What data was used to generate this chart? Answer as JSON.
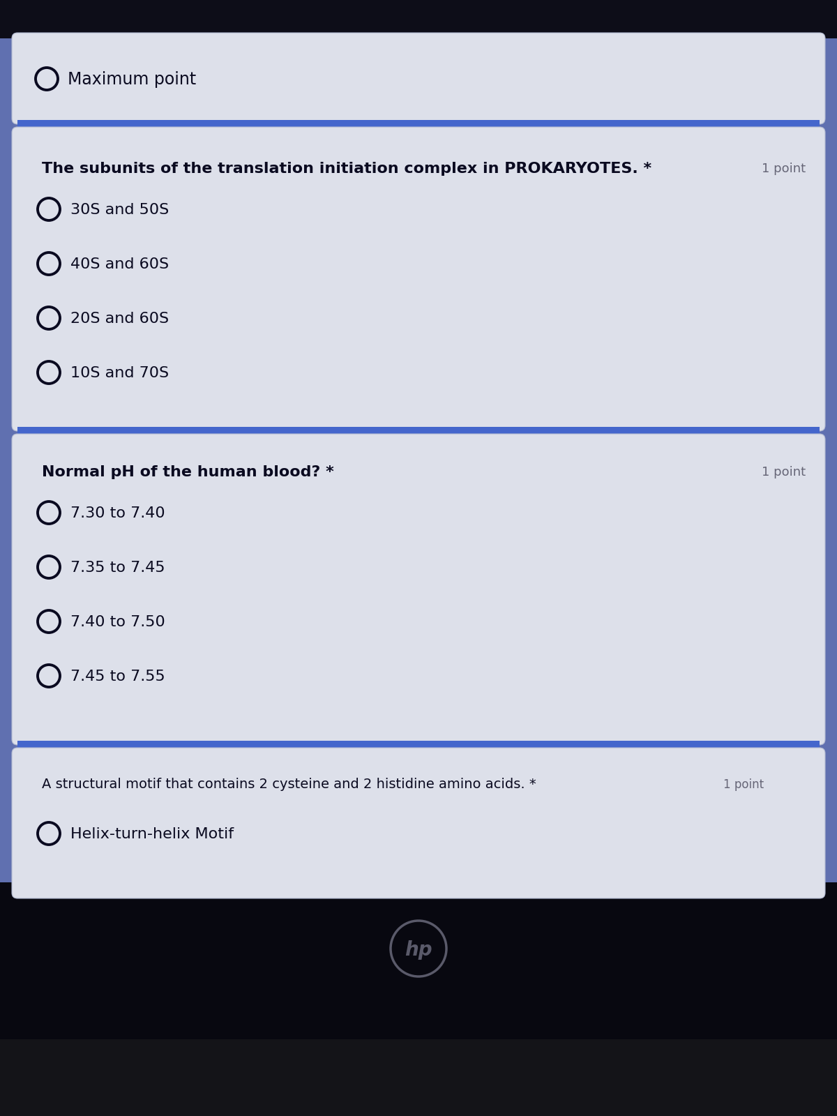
{
  "bg_outer": "#1a1a2a",
  "bg_screen": "#6070b0",
  "card_bg": "#dde0ea",
  "text_dark": "#0a0a20",
  "text_medium": "#333355",
  "point_color": "#666677",
  "radio_color": "#0a0a20",
  "blue_strip": "#4466cc",
  "q1_question": "The subunits of the translation initiation complex in PROKARYOTES. *",
  "q1_point": "1 point",
  "q1_options": [
    "30S and 50S",
    "40S and 60S",
    "20S and 60S",
    "10S and 70S"
  ],
  "q2_question": "Normal pH of the human blood? *",
  "q2_point": "1 point",
  "q2_options": [
    "7.30 to 7.40",
    "7.35 to 7.45",
    "7.40 to 7.50",
    "7.45 to 7.55"
  ],
  "q3_question": "A structural motif that contains 2 cysteine and 2 histidine amino acids. *",
  "q3_point": "1 point",
  "q3_options": [
    "Helix-turn-helix Motif"
  ],
  "top_text": "Maximum point",
  "hp_logo_text": "hp",
  "top_bar_color": "#0d0d18",
  "bottom_bar_color": "#080810",
  "bottom_bar2_color": "#141418"
}
